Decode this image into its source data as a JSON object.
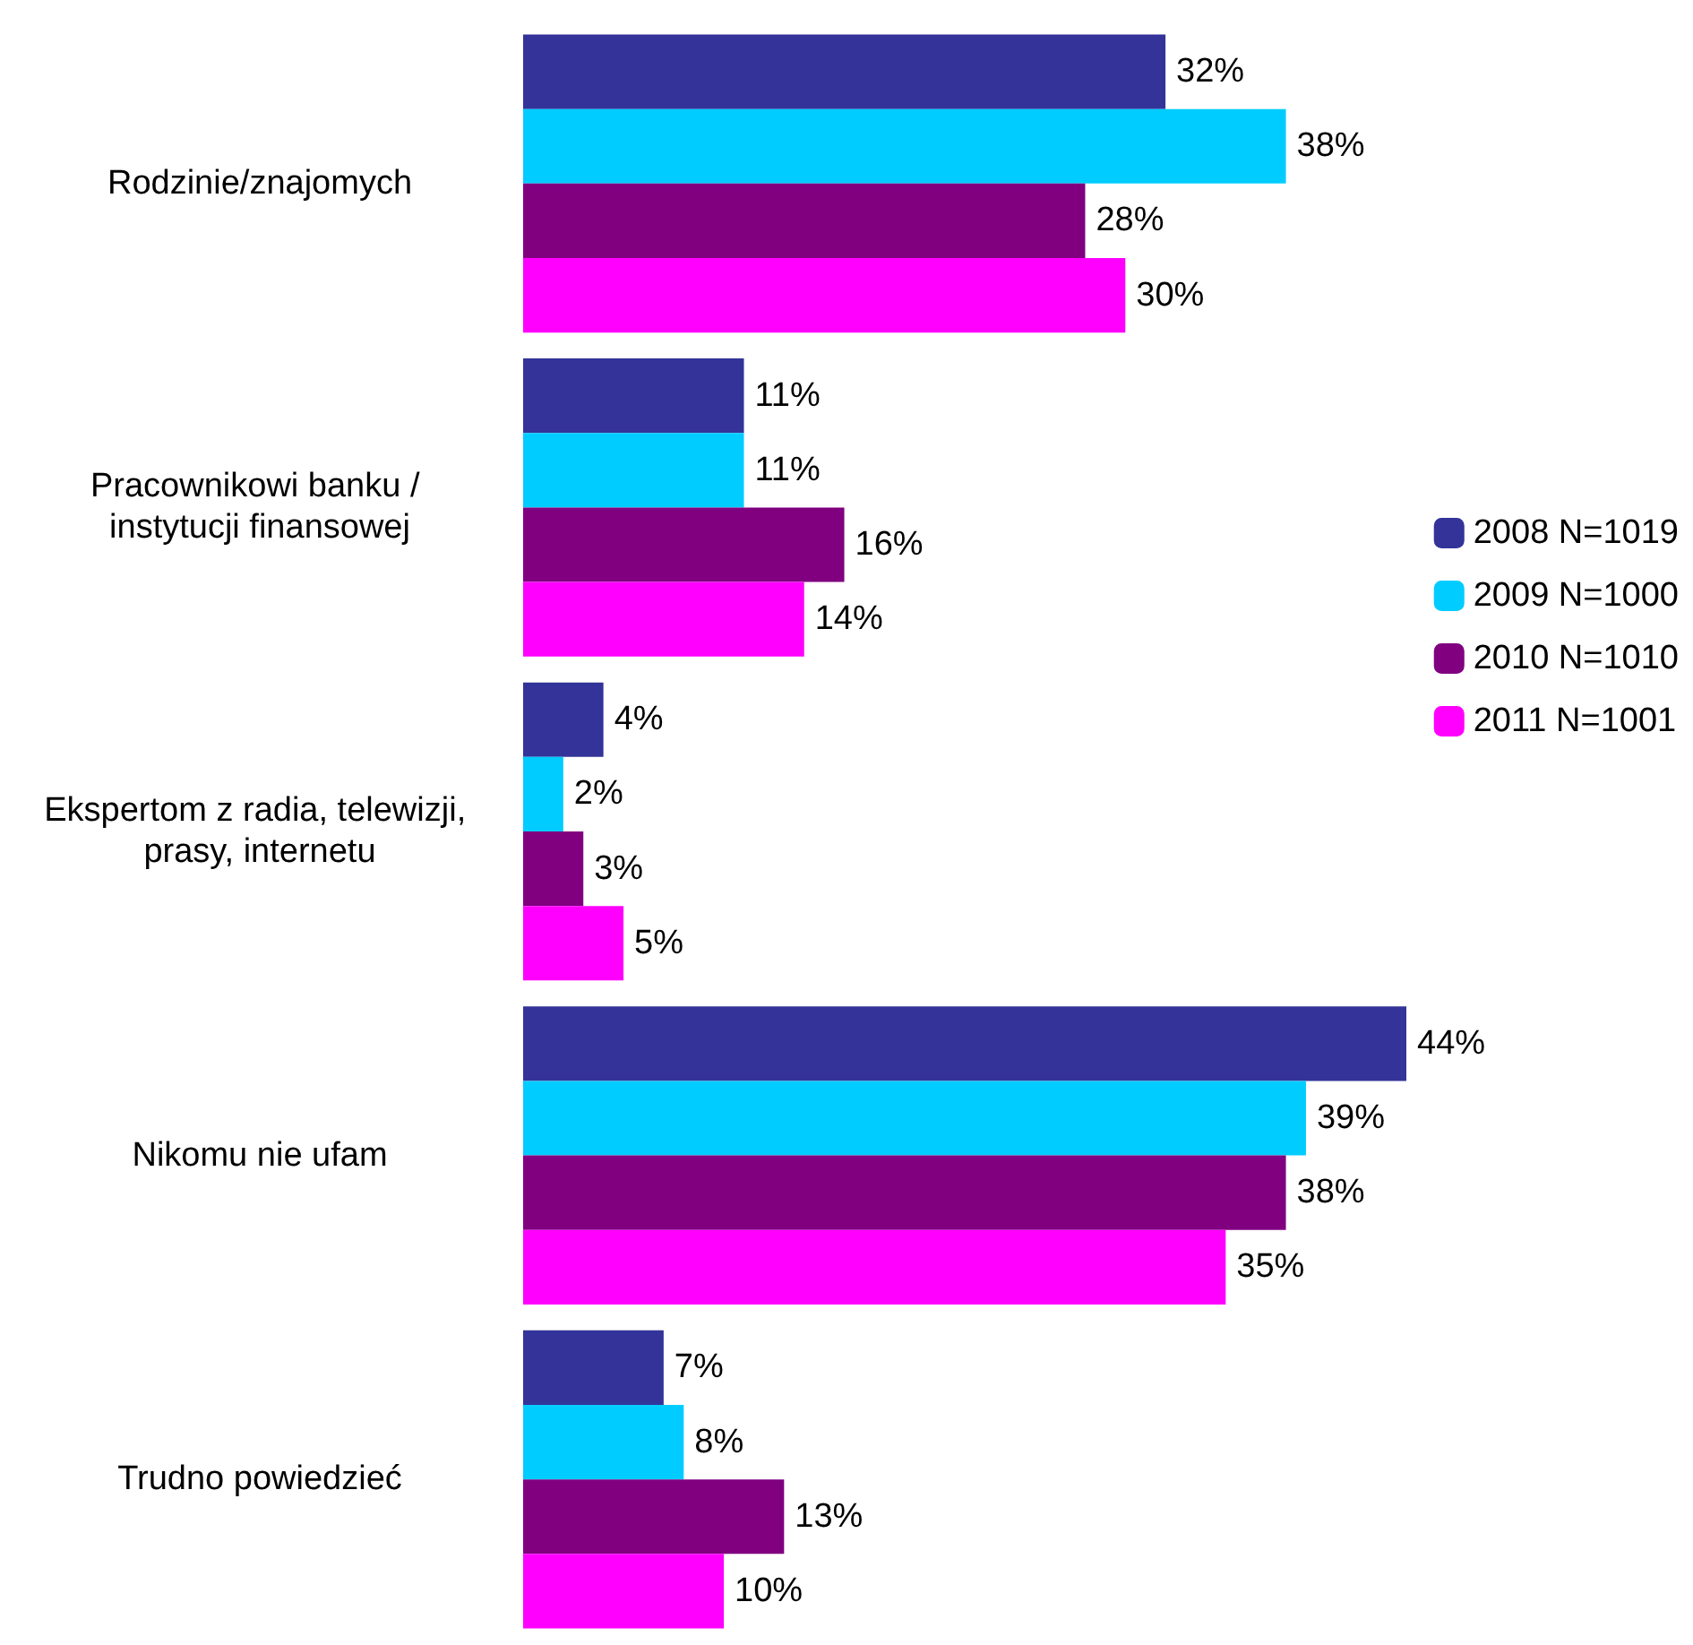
{
  "chart_data": {
    "type": "bar",
    "orientation": "horizontal",
    "categories": [
      "Rodzinie/znajomych",
      "Pracownikowi banku / instytucji finansowej",
      "Ekspertom z radia, telewizji, prasy, internetu",
      "Nikomu nie ufam",
      "Trudno powiedzieć"
    ],
    "series": [
      {
        "name": "2008 N=1019",
        "color": "#333399",
        "values": [
          32,
          11,
          4,
          44,
          7
        ],
        "value_labels": [
          "32%",
          "11%",
          "4%",
          "44%",
          "7%"
        ]
      },
      {
        "name": "2009 N=1000",
        "color": "#00ccff",
        "values": [
          38,
          11,
          2,
          39,
          8
        ],
        "value_labels": [
          "38%",
          "11%",
          "2%",
          "39%",
          "8%"
        ]
      },
      {
        "name": "2010 N=1010",
        "color": "#800080",
        "values": [
          28,
          16,
          3,
          38,
          13
        ],
        "value_labels": [
          "28%",
          "16%",
          "3%",
          "38%",
          "13%"
        ]
      },
      {
        "name": "2011 N=1001",
        "color": "#ff00ff",
        "values": [
          30,
          14,
          5,
          35,
          10
        ],
        "value_labels": [
          "30%",
          "14%",
          "5%",
          "35%",
          "10%"
        ]
      }
    ],
    "legend": "right",
    "grid": false
  }
}
